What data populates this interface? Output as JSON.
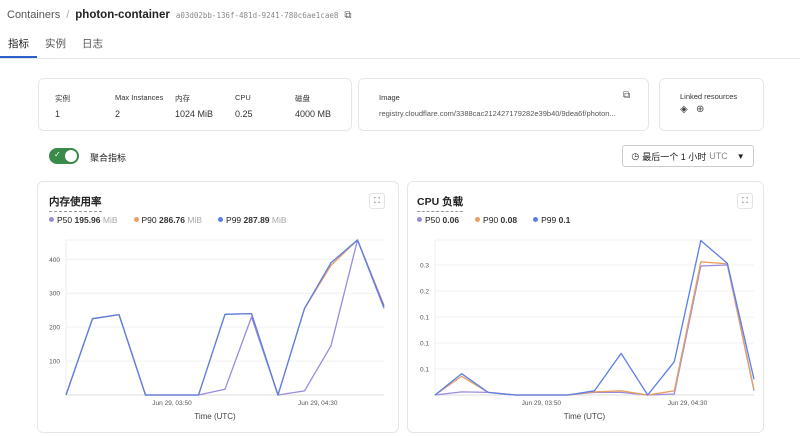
{
  "breadcrumb": {
    "root": "Containers",
    "separator": "/",
    "name": "photon-container",
    "uuid": "a03d02bb-136f-481d-9241-780c6ae1cae8"
  },
  "tabs": [
    {
      "label": "指标",
      "active": true
    },
    {
      "label": "实例"
    },
    {
      "label": "日志"
    }
  ],
  "stats": {
    "headers": [
      "实例",
      "Max Instances",
      "内存",
      "CPU",
      "磁盘"
    ],
    "values": [
      "1",
      "2",
      "1024 MiB",
      "0.25",
      "4000 MB"
    ]
  },
  "image": {
    "label": "Image",
    "value": "registry.cloudflare.com/3388cac21242717928​2e39b40/9dea6f/photon..."
  },
  "linked": {
    "label": "Linked resources",
    "icons": [
      "durable-object-icon",
      "globe-icon"
    ]
  },
  "toggle": {
    "label": "聚合指标",
    "on": true
  },
  "time_range": {
    "label": "最后一个 1 小时",
    "tz": "UTC"
  },
  "colors": {
    "p50": "#9b8ae0",
    "p90": "#e8a060",
    "p99": "#5b7fe8",
    "accent": "#3a8a4a"
  },
  "charts": [
    {
      "title": "内存使用率",
      "legend": [
        {
          "name": "P50",
          "value": "195.96",
          "unit": "MiB"
        },
        {
          "name": "P90",
          "value": "286.76",
          "unit": "MiB"
        },
        {
          "name": "P99",
          "value": "287.89",
          "unit": "MiB"
        }
      ]
    },
    {
      "title": "CPU 负载",
      "legend": [
        {
          "name": "P50",
          "value": "0.06",
          "unit": ""
        },
        {
          "name": "P90",
          "value": "0.08",
          "unit": ""
        },
        {
          "name": "P99",
          "value": "0.1",
          "unit": ""
        }
      ]
    }
  ],
  "chart_data": [
    {
      "type": "line",
      "title": "内存使用率",
      "xlabel": "Time (UTC)",
      "ylabel": "",
      "ylim": [
        0,
        457
      ],
      "x_ticks": [
        {
          "label": "Jun 29, 03:50",
          "at": 4
        },
        {
          "label": "Jun 29, 04:30",
          "at": 9.5
        }
      ],
      "y_ticks": [
        {
          "label": "100",
          "at": 100
        },
        {
          "label": "200",
          "at": 200
        },
        {
          "label": "300",
          "at": 300
        },
        {
          "label": "400",
          "at": 400
        }
      ],
      "series": [
        {
          "name": "P50",
          "values": [
            0,
            225,
            237,
            0,
            0,
            0,
            17,
            230,
            0,
            12,
            145,
            457,
            255
          ]
        },
        {
          "name": "P90",
          "values": [
            0,
            225,
            237,
            0,
            0,
            0,
            238,
            240,
            0,
            255,
            382,
            457,
            265
          ]
        },
        {
          "name": "P99",
          "values": [
            0,
            225,
            237,
            0,
            0,
            0,
            238,
            240,
            0,
            255,
            390,
            457,
            260
          ]
        }
      ]
    },
    {
      "type": "line",
      "title": "CPU 负载",
      "xlabel": "Time (UTC)",
      "ylabel": "",
      "ylim": [
        0,
        0.298
      ],
      "x_ticks": [
        {
          "label": "Jun 29, 03:50",
          "at": 4
        },
        {
          "label": "Jun 29, 04:30",
          "at": 9.5
        }
      ],
      "y_ticks": [
        {
          "label": "0.1",
          "at": 0.05
        },
        {
          "label": "0.1",
          "at": 0.1
        },
        {
          "label": "0.1",
          "at": 0.15
        },
        {
          "label": "0.2",
          "at": 0.2
        },
        {
          "label": "0.3",
          "at": 0.25
        }
      ],
      "series": [
        {
          "name": "P50",
          "values": [
            0,
            0.006,
            0.005,
            0,
            0,
            0,
            0.005,
            0.005,
            0,
            0.002,
            0.248,
            0.25,
            0.008
          ]
        },
        {
          "name": "P90",
          "values": [
            0,
            0.036,
            0.005,
            0,
            0,
            0,
            0.006,
            0.008,
            0,
            0.008,
            0.256,
            0.252,
            0.01
          ]
        },
        {
          "name": "P99",
          "values": [
            0,
            0.041,
            0.005,
            0,
            0,
            0,
            0.008,
            0.08,
            0,
            0.064,
            0.297,
            0.253,
            0.03
          ]
        }
      ]
    }
  ]
}
